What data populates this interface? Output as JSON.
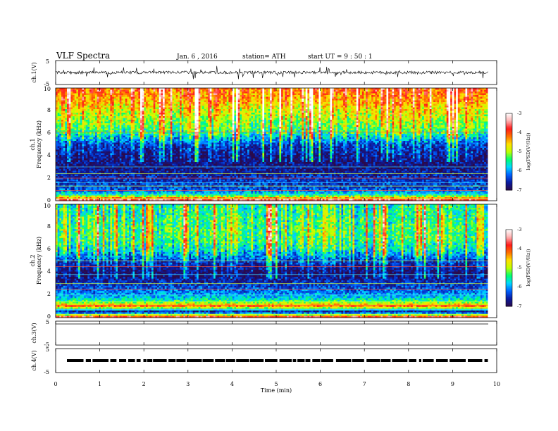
{
  "header": {
    "title": "VLF  Spectra",
    "date": "Jan. 6 , 2016",
    "station": "station= ATH",
    "start": "start  UT  =   9 : 50 : 1"
  },
  "chart_data": [
    {
      "type": "line",
      "panel": "ch1-waveform",
      "ylabel": "ch.1(V)",
      "ylim": [
        -5,
        5
      ],
      "yticks": [
        "5",
        "-5"
      ],
      "xlim": [
        0,
        10
      ],
      "trace_end_min": 9.8,
      "baseline": 0,
      "noise_amplitude": 0.6
    },
    {
      "type": "heatmap",
      "panel": "ch1-spectrogram",
      "ylabel_line1": "ch.1",
      "ylabel_line2": "Frequency (kHz)",
      "ylim": [
        0,
        10
      ],
      "yticks": [
        "0",
        "2",
        "4",
        "6",
        "8",
        "10"
      ],
      "xlim": [
        0,
        10
      ],
      "data_end_min": 9.8,
      "colorbar": {
        "label": "log(PSD(V²/Hz))",
        "range": [
          -7,
          -3
        ],
        "ticks": [
          "-3",
          "-4",
          "-5",
          "-6",
          "-7"
        ]
      },
      "typical_log_psd_profile": [
        {
          "f_khz": 0.0,
          "log_psd": -3.3
        },
        {
          "f_khz": 0.5,
          "log_psd": -5.5
        },
        {
          "f_khz": 1.0,
          "log_psd": -6.3
        },
        {
          "f_khz": 2.0,
          "log_psd": -6.5
        },
        {
          "f_khz": 3.0,
          "log_psd": -6.8
        },
        {
          "f_khz": 4.0,
          "log_psd": -6.6
        },
        {
          "f_khz": 5.0,
          "log_psd": -6.3
        },
        {
          "f_khz": 6.0,
          "log_psd": -5.3
        },
        {
          "f_khz": 7.0,
          "log_psd": -4.9
        },
        {
          "f_khz": 8.0,
          "log_psd": -4.6
        },
        {
          "f_khz": 9.0,
          "log_psd": -4.2
        },
        {
          "f_khz": 10.0,
          "log_psd": -3.9
        }
      ],
      "narrowband_lines_khz": [
        0.2,
        0.6,
        0.9,
        1.3,
        1.6,
        2.0,
        2.4,
        3.0,
        6.1
      ]
    },
    {
      "type": "heatmap",
      "panel": "ch2-spectrogram",
      "ylabel_line1": "ch.2",
      "ylabel_line2": "Frequency (kHz)",
      "ylim": [
        0,
        10
      ],
      "yticks": [
        "0",
        "2",
        "4",
        "6",
        "8",
        "10"
      ],
      "xlim": [
        0,
        10
      ],
      "data_end_min": 9.8,
      "colorbar": {
        "label": "log(PSD(V²/Hz))",
        "range": [
          -7,
          -3
        ],
        "ticks": [
          "-3",
          "-4",
          "-5",
          "-6",
          "-7"
        ]
      },
      "typical_log_psd_profile": [
        {
          "f_khz": 0.0,
          "log_psd": -3.3
        },
        {
          "f_khz": 0.5,
          "log_psd": -6.8
        },
        {
          "f_khz": 1.0,
          "log_psd": -4.2
        },
        {
          "f_khz": 1.5,
          "log_psd": -5.5
        },
        {
          "f_khz": 2.0,
          "log_psd": -6.0
        },
        {
          "f_khz": 3.0,
          "log_psd": -6.5
        },
        {
          "f_khz": 4.0,
          "log_psd": -6.8
        },
        {
          "f_khz": 5.0,
          "log_psd": -6.3
        },
        {
          "f_khz": 6.0,
          "log_psd": -5.5
        },
        {
          "f_khz": 7.0,
          "log_psd": -5.2
        },
        {
          "f_khz": 8.0,
          "log_psd": -5.2
        },
        {
          "f_khz": 9.0,
          "log_psd": -5.3
        },
        {
          "f_khz": 10.0,
          "log_psd": -5.4
        }
      ],
      "narrowband_lines_khz": [
        0.3,
        0.7,
        1.1,
        1.4,
        2.0,
        2.5,
        3.0,
        3.8,
        4.5,
        5.0
      ]
    },
    {
      "type": "line",
      "panel": "ch3-waveform",
      "ylabel": "ch.3(V)",
      "ylim": [
        -5,
        5
      ],
      "yticks": [
        "5",
        "-5"
      ],
      "xlim": [
        0,
        10
      ],
      "trace_end_min": 9.8,
      "constant_value": 5
    },
    {
      "type": "line",
      "panel": "ch4-waveform",
      "ylabel": "ch.4(V)",
      "ylim": [
        -5,
        5
      ],
      "yticks": [
        "5",
        "-5"
      ],
      "xlim": [
        0,
        10
      ],
      "trace_end_min": 9.8,
      "constant_value": 0
    }
  ],
  "xaxis": {
    "label": "Time  (min)",
    "ticks": [
      "0",
      "1",
      "2",
      "3",
      "4",
      "5",
      "6",
      "7",
      "8",
      "9",
      "10"
    ]
  },
  "colormap": [
    "#2a0a4a",
    "#0a1aa0",
    "#0060ff",
    "#00d8ff",
    "#00ff70",
    "#c0ff00",
    "#ffe000",
    "#ff7000",
    "#ff1a1a",
    "#ffb0b0",
    "#ffffff"
  ]
}
